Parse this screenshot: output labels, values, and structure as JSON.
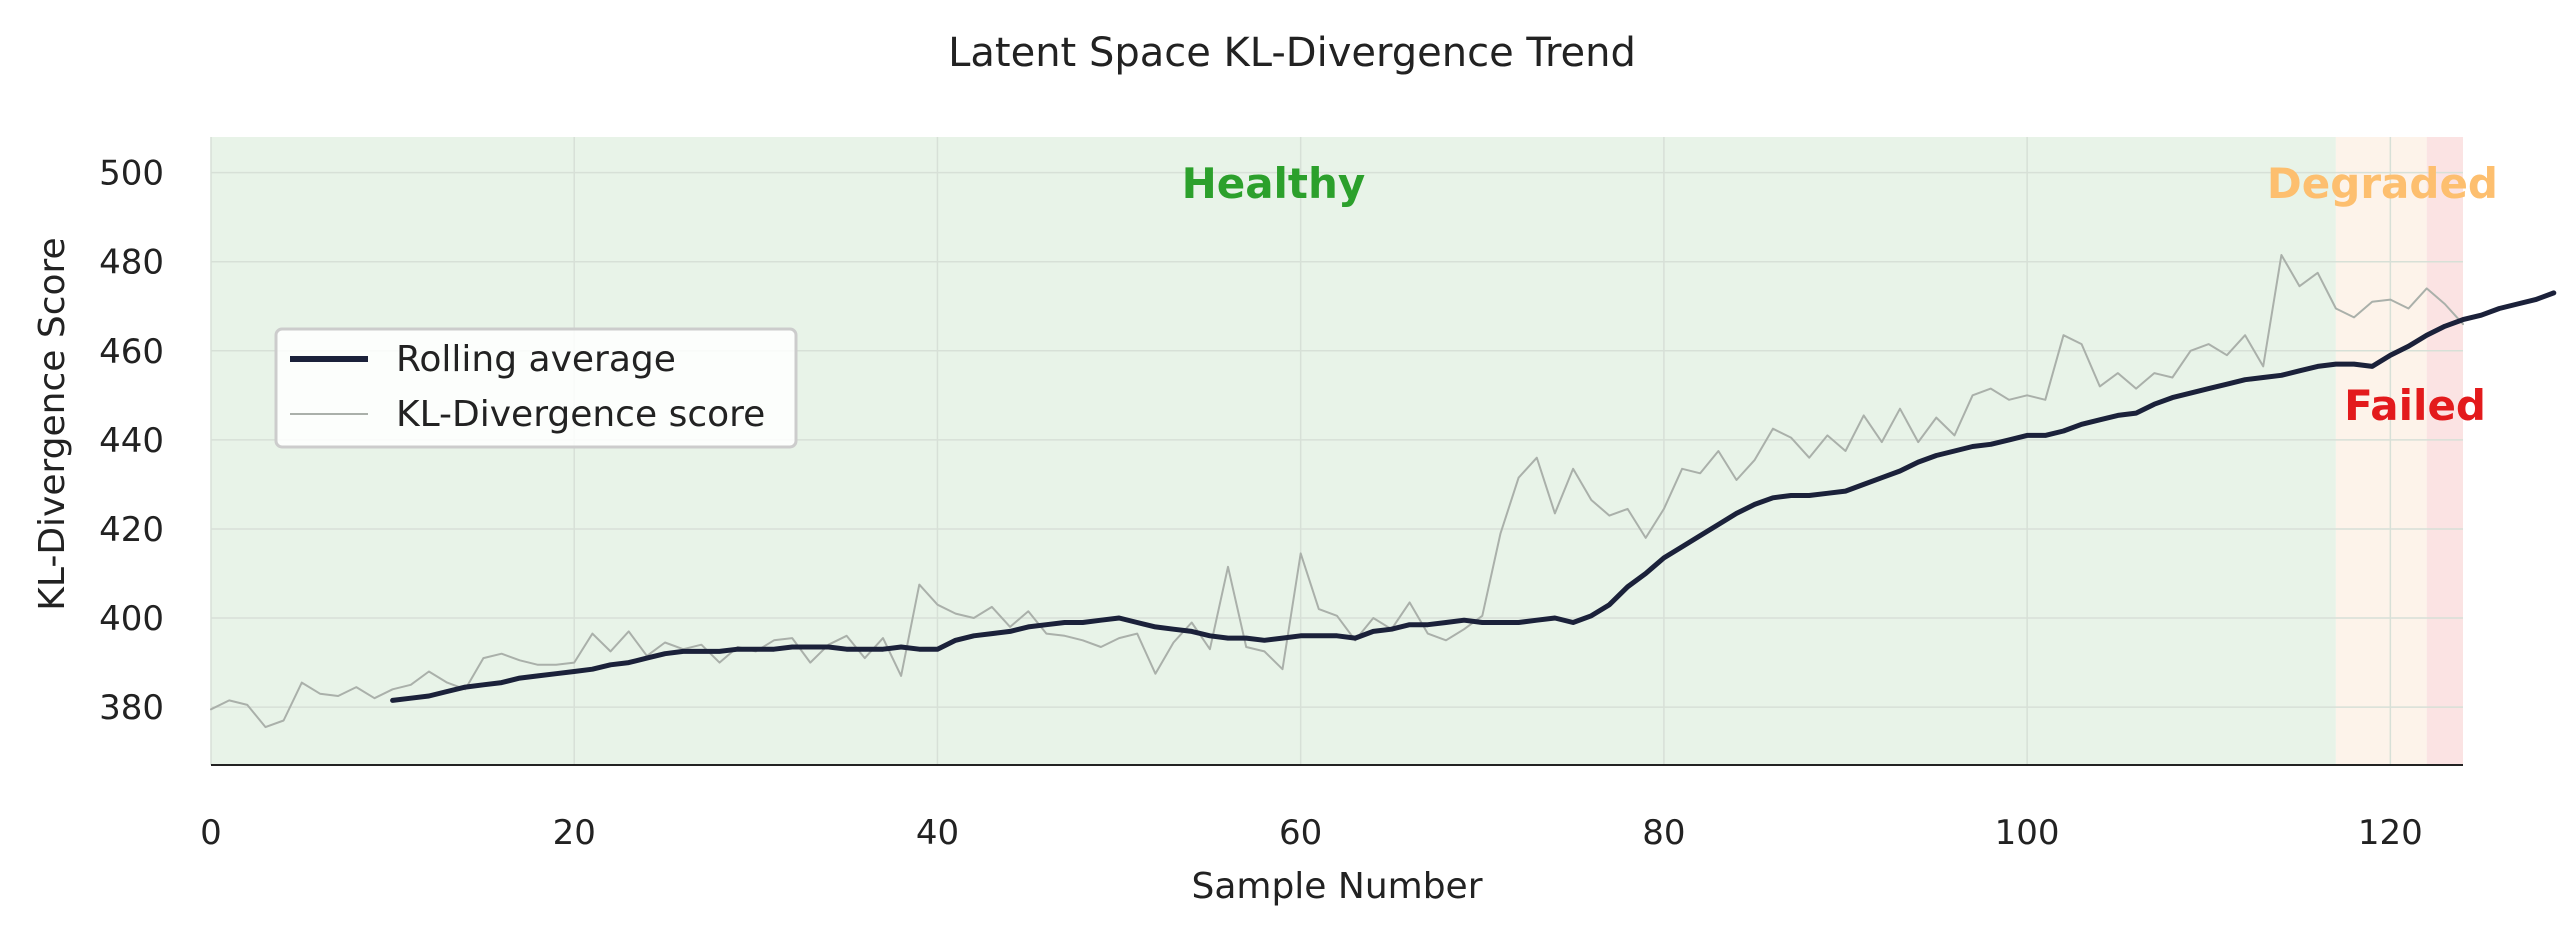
{
  "chart_data": {
    "type": "line",
    "title": "Latent Space KL-Divergence Trend",
    "xlabel": "Sample Number",
    "ylabel": "KL-Divergence Score",
    "xlim": [
      0,
      124
    ],
    "ylim": [
      367,
      508
    ],
    "xticks": [
      0,
      20,
      40,
      60,
      80,
      100,
      120
    ],
    "yticks": [
      380,
      400,
      420,
      440,
      460,
      480,
      500
    ],
    "grid": true,
    "legend_position": "center-left",
    "zones": [
      {
        "label": "Healthy",
        "x_start": 0,
        "x_end": 117,
        "color": "#e8f3e8",
        "label_color": "#2ca02c"
      },
      {
        "label": "Degraded",
        "x_start": 117,
        "x_end": 122,
        "color": "#fdf3ea",
        "label_color": "#fdbf6f"
      },
      {
        "label": "Failed",
        "x_start": 122,
        "x_end": 124,
        "color": "#fbe3e3",
        "label_color": "#e31a1c"
      }
    ],
    "series": [
      {
        "name": "KL-Divergence score",
        "color": "#aab0aa",
        "x_start": 0,
        "values": [
          379.5,
          381.5,
          380.5,
          375.5,
          377,
          385.5,
          383,
          382.5,
          384.5,
          382,
          384,
          385,
          388,
          385.5,
          384,
          391,
          392,
          390.5,
          389.5,
          389.5,
          390,
          396.5,
          392.5,
          397,
          391.5,
          394.5,
          393,
          394,
          390,
          393.5,
          392.5,
          395,
          395.5,
          390,
          394,
          396,
          391,
          395.5,
          387,
          407.5,
          403,
          401,
          400,
          402.5,
          398,
          401.5,
          396.5,
          396,
          395,
          393.5,
          395.5,
          396.5,
          387.5,
          394.5,
          399,
          393,
          411.5,
          393.5,
          392.5,
          388.5,
          414.5,
          402,
          400.5,
          395,
          400,
          397.5,
          403.5,
          396.5,
          395,
          397.5,
          400.5,
          419,
          431.5,
          436,
          423.5,
          433.5,
          426.5,
          423,
          424.5,
          418,
          424.5,
          433.5,
          432.5,
          437.5,
          431,
          435.5,
          442.5,
          440.5,
          436,
          441,
          437.5,
          445.5,
          439.5,
          447,
          439.5,
          445,
          441,
          450,
          451.5,
          449,
          450,
          449,
          463.5,
          461.5,
          452,
          455,
          451.5,
          455,
          454,
          460,
          461.5,
          459,
          463.5,
          456.5,
          481.5,
          474.5,
          477.5,
          469.5,
          467.5,
          471,
          471.5,
          469.5,
          474,
          470.5,
          466
        ]
      },
      {
        "name": "Rolling average",
        "color": "#1b213a",
        "x_start": 10,
        "values": [
          381.5,
          382,
          382.5,
          383.5,
          384.5,
          385,
          385.5,
          386.5,
          387,
          387.5,
          388,
          388.5,
          389.5,
          390,
          391,
          392,
          392.5,
          392.5,
          392.5,
          393,
          393,
          393,
          393.5,
          393.5,
          393.5,
          393,
          393,
          393,
          393.5,
          393,
          393,
          395,
          396,
          396.5,
          397,
          398,
          398.5,
          399,
          399,
          399.5,
          400,
          399,
          398,
          397.5,
          397,
          396,
          395.5,
          395.5,
          395,
          395.5,
          396,
          396,
          396,
          395.5,
          397,
          397.5,
          398.5,
          398.5,
          399,
          399.5,
          399,
          399,
          399,
          399.5,
          400,
          399,
          400.5,
          403,
          407,
          410,
          413.5,
          416,
          418.5,
          421,
          423.5,
          425.5,
          427,
          427.5,
          427.5,
          428,
          428.5,
          430,
          431.5,
          433,
          435,
          436.5,
          437.5,
          438.5,
          439,
          440,
          441,
          441,
          442,
          443.5,
          444.5,
          445.5,
          446,
          448,
          449.5,
          450.5,
          451.5,
          452.5,
          453.5,
          454,
          454.5,
          455.5,
          456.5,
          457,
          457,
          456.5,
          459,
          461,
          463.5,
          465.5,
          467,
          468,
          469.5,
          470.5,
          471.5,
          473
        ]
      }
    ],
    "legend": [
      "Rolling average",
      "KL-Divergence score"
    ]
  }
}
